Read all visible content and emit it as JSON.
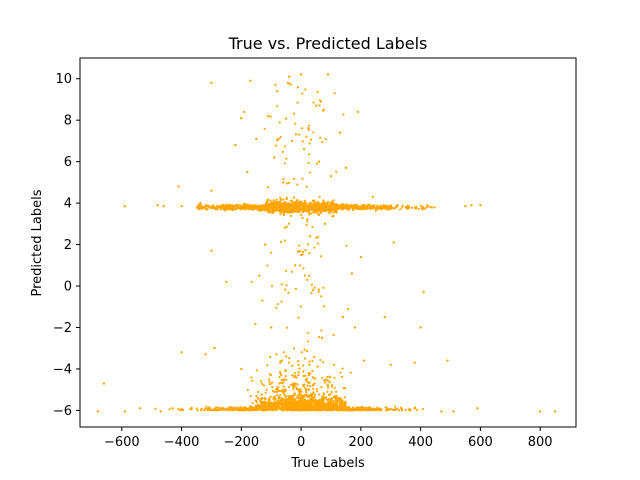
{
  "chart_data": {
    "type": "scatter",
    "title": "True vs. Predicted Labels",
    "xlabel": "True Labels",
    "ylabel": "Predicted Labels",
    "xlim": [
      -740,
      920
    ],
    "ylim": [
      -6.8,
      11.0
    ],
    "xticks": [
      -600,
      -400,
      -200,
      0,
      200,
      400,
      600,
      800
    ],
    "yticks": [
      -6,
      -4,
      -2,
      0,
      2,
      4,
      6,
      8,
      10
    ],
    "xtick_labels": [
      "−600",
      "−400",
      "−200",
      "0",
      "200",
      "400",
      "600",
      "800"
    ],
    "ytick_labels": [
      "−6",
      "−4",
      "−2",
      "0",
      "2",
      "4",
      "6",
      "8",
      "10"
    ],
    "grid": false,
    "marker_color": "#ffa500",
    "marker": "small dot",
    "distribution_summary": {
      "lower_cluster": {
        "y_center": -6.0,
        "x_range": [
          -500,
          420
        ]
      },
      "upper_cluster": {
        "y_center": 3.8,
        "x_range": [
          -350,
          460
        ]
      },
      "vertical_spread_x_range": [
        -200,
        200
      ]
    },
    "points": [
      {
        "x": -680,
        "y": -6.05
      },
      {
        "x": -660,
        "y": -4.7
      },
      {
        "x": -590,
        "y": -6.05
      },
      {
        "x": -590,
        "y": 3.85
      },
      {
        "x": -540,
        "y": -5.9
      },
      {
        "x": -470,
        "y": -6.05
      },
      {
        "x": -480,
        "y": 3.9
      },
      {
        "x": -460,
        "y": 3.85
      },
      {
        "x": -430,
        "y": -5.9
      },
      {
        "x": -410,
        "y": 4.8
      },
      {
        "x": -400,
        "y": -3.2
      },
      {
        "x": -400,
        "y": 3.85
      },
      {
        "x": -320,
        "y": -3.3
      },
      {
        "x": -300,
        "y": 9.8
      },
      {
        "x": -300,
        "y": 4.6
      },
      {
        "x": -300,
        "y": 1.7
      },
      {
        "x": -290,
        "y": -3.0
      },
      {
        "x": -250,
        "y": 0.2
      },
      {
        "x": -220,
        "y": 6.8
      },
      {
        "x": -200,
        "y": 8.1
      },
      {
        "x": -200,
        "y": -4.0
      },
      {
        "x": -190,
        "y": 8.4
      },
      {
        "x": -180,
        "y": 5.5
      },
      {
        "x": -170,
        "y": 9.9
      },
      {
        "x": -150,
        "y": 7.1
      },
      {
        "x": -140,
        "y": 0.5
      },
      {
        "x": -130,
        "y": -0.7
      },
      {
        "x": -120,
        "y": 2.0
      },
      {
        "x": -110,
        "y": 8.2
      },
      {
        "x": -100,
        "y": -2.0
      },
      {
        "x": -90,
        "y": 6.2
      },
      {
        "x": -80,
        "y": 9.4
      },
      {
        "x": -60,
        "y": 5.0
      },
      {
        "x": -50,
        "y": -3.4
      },
      {
        "x": -40,
        "y": 10.1
      },
      {
        "x": -30,
        "y": 7.0
      },
      {
        "x": -20,
        "y": 1.0
      },
      {
        "x": 0,
        "y": 10.2
      },
      {
        "x": 10,
        "y": 6.6
      },
      {
        "x": 20,
        "y": -4.6
      },
      {
        "x": 30,
        "y": 2.4
      },
      {
        "x": 40,
        "y": -0.2
      },
      {
        "x": 50,
        "y": 8.7
      },
      {
        "x": 60,
        "y": 6.0
      },
      {
        "x": 70,
        "y": -2.5
      },
      {
        "x": 80,
        "y": 3.0
      },
      {
        "x": 90,
        "y": 10.2
      },
      {
        "x": 100,
        "y": 5.3
      },
      {
        "x": 110,
        "y": -3.8
      },
      {
        "x": 130,
        "y": 7.4
      },
      {
        "x": 140,
        "y": -1.5
      },
      {
        "x": 150,
        "y": 5.7
      },
      {
        "x": 170,
        "y": 0.6
      },
      {
        "x": 180,
        "y": -2.0
      },
      {
        "x": 190,
        "y": 8.4
      },
      {
        "x": 200,
        "y": 1.4
      },
      {
        "x": 210,
        "y": -3.6
      },
      {
        "x": 240,
        "y": 4.3
      },
      {
        "x": 280,
        "y": -1.5
      },
      {
        "x": 300,
        "y": -3.8
      },
      {
        "x": 310,
        "y": 2.1
      },
      {
        "x": 380,
        "y": -3.7
      },
      {
        "x": 400,
        "y": -2.0
      },
      {
        "x": 410,
        "y": -0.3
      },
      {
        "x": 490,
        "y": -3.6
      },
      {
        "x": 470,
        "y": -6.05
      },
      {
        "x": 510,
        "y": -6.05
      },
      {
        "x": 550,
        "y": 3.85
      },
      {
        "x": 570,
        "y": 3.9
      },
      {
        "x": 590,
        "y": -5.9
      },
      {
        "x": 600,
        "y": 3.9
      },
      {
        "x": 800,
        "y": -6.05
      },
      {
        "x": 850,
        "y": -6.05
      }
    ]
  }
}
